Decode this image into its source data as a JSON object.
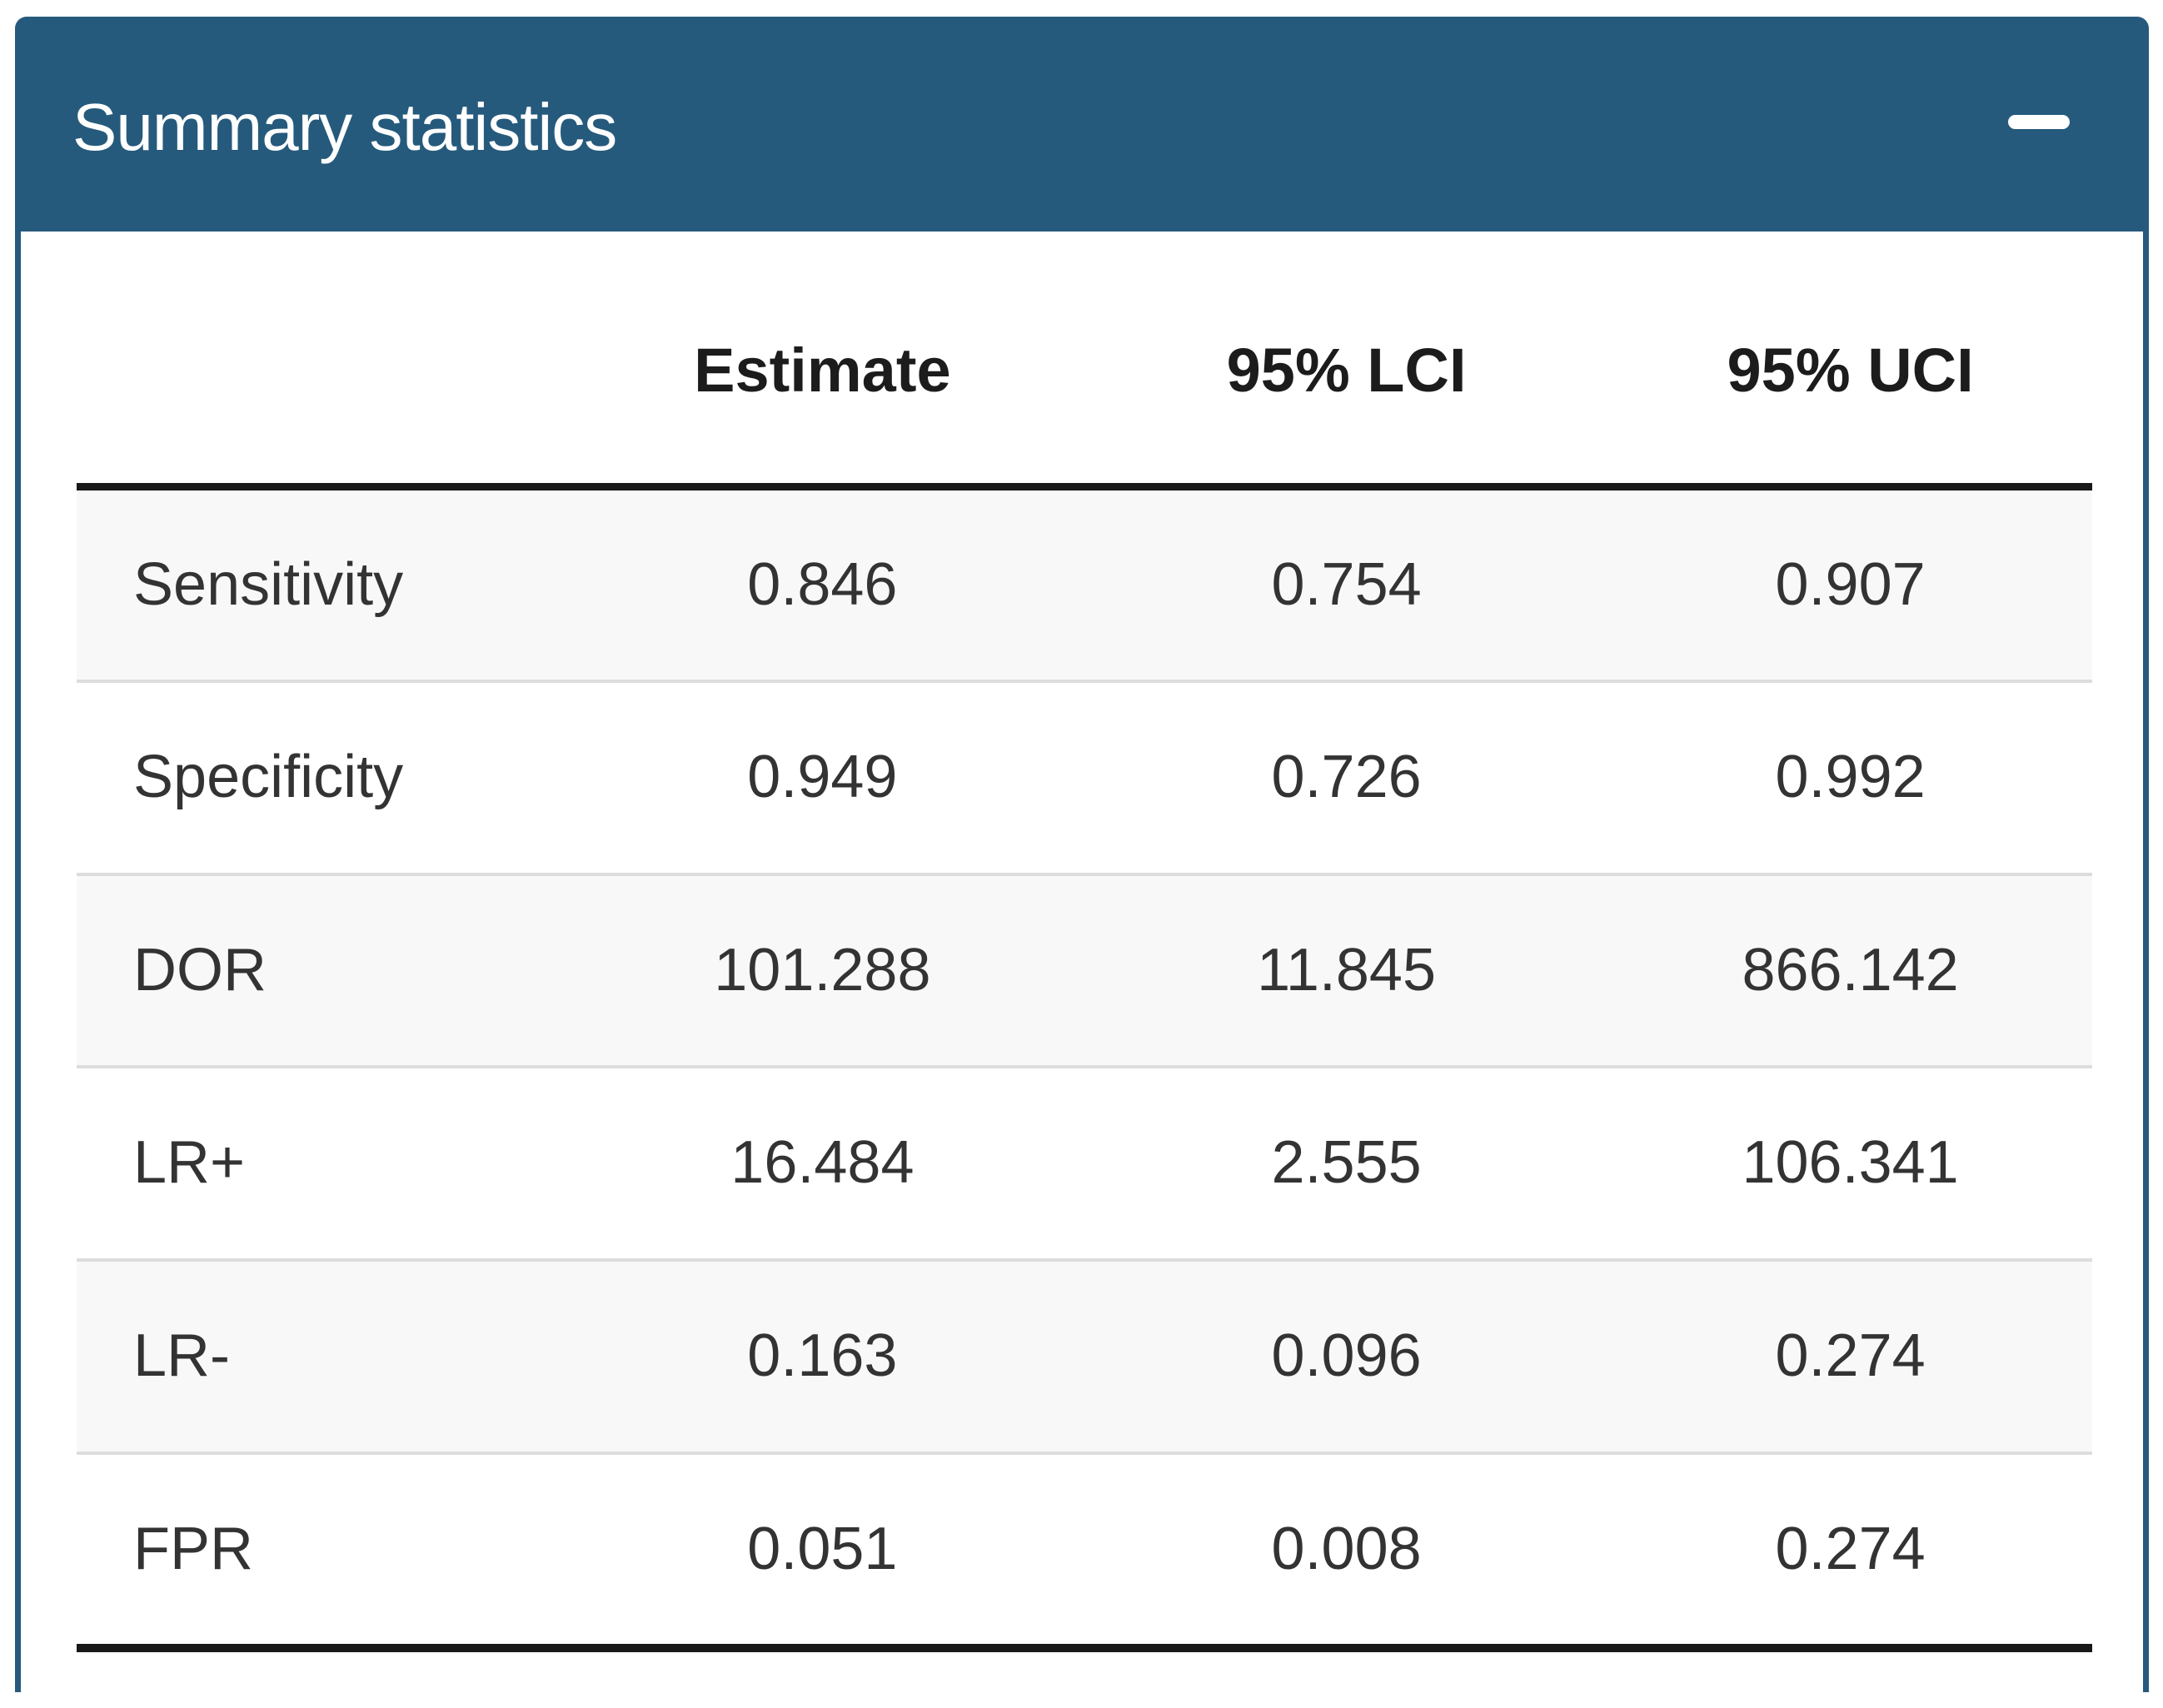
{
  "panel": {
    "title": "Summary statistics",
    "collapse_icon": "minus",
    "colors": {
      "header_bg": "#265a7c",
      "border": "#265a7c",
      "title_text": "#ffffff",
      "row_stripe": "#f8f8f8",
      "row_divider": "#dddddd",
      "heavy_rule": "#191919",
      "header_text": "#1c1c1c",
      "body_text": "#333333"
    }
  },
  "table": {
    "columns": [
      "",
      "Estimate",
      "95% LCI",
      "95% UCI"
    ],
    "rows": [
      {
        "label": "Sensitivity",
        "estimate": "0.846",
        "lci": "0.754",
        "uci": "0.907"
      },
      {
        "label": "Specificity",
        "estimate": "0.949",
        "lci": "0.726",
        "uci": "0.992"
      },
      {
        "label": "DOR",
        "estimate": "101.288",
        "lci": "11.845",
        "uci": "866.142"
      },
      {
        "label": "LR+",
        "estimate": "16.484",
        "lci": "2.555",
        "uci": "106.341"
      },
      {
        "label": "LR-",
        "estimate": "0.163",
        "lci": "0.096",
        "uci": "0.274"
      },
      {
        "label": "FPR",
        "estimate": "0.051",
        "lci": "0.008",
        "uci": "0.274"
      }
    ]
  }
}
